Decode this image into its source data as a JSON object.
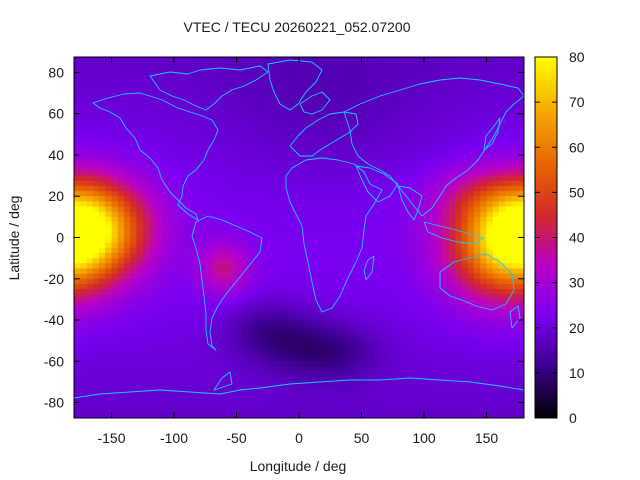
{
  "chart_data": {
    "type": "heatmap",
    "title": "VTEC / TECU 20260221_052.07200",
    "xlabel": "Longitude / deg",
    "ylabel": "Latitude / deg",
    "xlim": [
      -180,
      180
    ],
    "ylim": [
      -87.5,
      87.5
    ],
    "x_ticks": [
      -150,
      -100,
      -50,
      0,
      50,
      100,
      150
    ],
    "y_ticks": [
      -80,
      -60,
      -40,
      -20,
      0,
      20,
      40,
      60,
      80
    ],
    "colorbar": {
      "range": [
        0,
        80
      ],
      "ticks": [
        0,
        10,
        20,
        30,
        40,
        50,
        60,
        70,
        80
      ],
      "palette": [
        "#000000",
        "#3a008c",
        "#7a00f0",
        "#b800c8",
        "#d2282a",
        "#e86400",
        "#f5a800",
        "#ffff00"
      ]
    },
    "grid": false,
    "features": [
      {
        "lon": -168,
        "lat": 5,
        "sigma_lon": 32,
        "sigma_lat": 16,
        "amp": 47
      },
      {
        "lon": 165,
        "lat": -5,
        "sigma_lon": 32,
        "sigma_lat": 18,
        "amp": 40
      },
      {
        "lon": 140,
        "lat": 20,
        "sigma_lon": 30,
        "sigma_lat": 10,
        "amp": 8
      },
      {
        "lon": -60,
        "lat": -15,
        "sigma_lon": 14,
        "sigma_lat": 9,
        "amp": 16
      },
      {
        "lon": -25,
        "lat": -45,
        "sigma_lon": 25,
        "sigma_lat": 10,
        "amp": -9
      },
      {
        "lon": 20,
        "lat": -55,
        "sigma_lon": 30,
        "sigma_lat": 10,
        "amp": -11
      },
      {
        "lon": 20,
        "lat": 60,
        "sigma_lon": 60,
        "sigma_lat": 25,
        "amp": -4
      }
    ]
  }
}
